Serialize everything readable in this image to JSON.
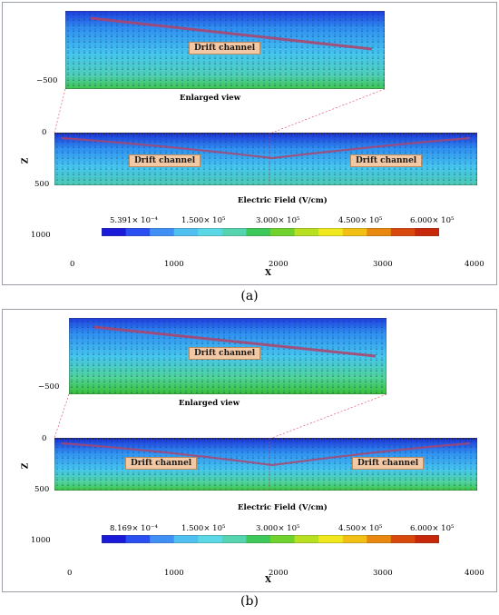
{
  "panels": [
    {
      "caption": "(a)",
      "inset_label": "Enlarged view",
      "drift_label": "Drift channel",
      "colorbar_title": "Electric Field (V/cm)",
      "colorbar_ticks": [
        "5.391× 10⁻⁴",
        "1.500× 10⁵",
        "3.000× 10⁵",
        "4.500× 10⁵",
        "6.000× 10⁵"
      ],
      "x_ticks": [
        "0",
        "1000",
        "2000",
        "3000",
        "4000"
      ],
      "z_ticks": [
        "0",
        "500",
        "1000"
      ],
      "inset_z_tick": "−500",
      "x_axis": "X",
      "z_axis": "Z"
    },
    {
      "caption": "(b)",
      "inset_label": "Enlarged view",
      "drift_label": "Drift channel",
      "colorbar_title": "Electric Field (V/cm)",
      "colorbar_ticks": [
        "8.169× 10⁻⁴",
        "1.500× 10⁵",
        "3.000× 10⁵",
        "4.500× 10⁵",
        "6.000× 10⁵"
      ],
      "x_ticks": [
        "0",
        "1000",
        "2000",
        "3000",
        "4000"
      ],
      "z_ticks": [
        "0",
        "500",
        "1000"
      ],
      "inset_z_tick": "−500",
      "x_axis": "X",
      "z_axis": "Z"
    }
  ],
  "colors": {
    "colorbar": [
      "#1a1ad8",
      "#2a4ff0",
      "#3f8ff5",
      "#4fc0f0",
      "#5ad8e6",
      "#56d4b0",
      "#3fc85a",
      "#6fd22e",
      "#b8e020",
      "#f0e81c",
      "#f2c014",
      "#e8880e",
      "#d8480c",
      "#c8280a"
    ],
    "field_top": "#2a5cf0",
    "field_mid": "#44c8f2",
    "field_bottom": "#38c45a",
    "drift_line": "#b0426a",
    "zoom_line": "#e04060"
  }
}
